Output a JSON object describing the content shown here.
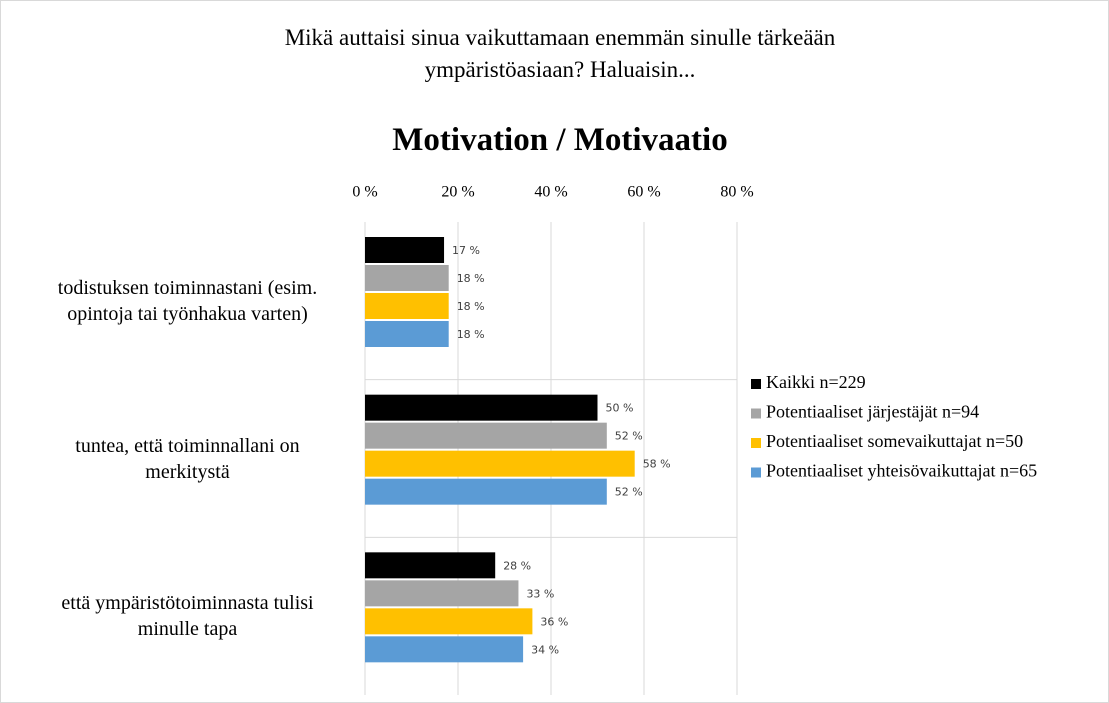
{
  "chart_data": {
    "type": "barh",
    "title": "Mikä auttaisi sinua vaikuttamaan enemmän sinulle tärkeään\nympäristöasiaan? Haluaisin...",
    "subtitle": "Motivation / Motivaatio",
    "categories": [
      "todistuksen toiminnastani (esim.\nopintoja tai työnhakua varten)",
      "tuntea, että toiminnallani on\nmerkitystä",
      "että ympäristötoiminnasta tulisi\nminulle tapa"
    ],
    "series": [
      {
        "name": "Kaikki n=229",
        "color": "#000000",
        "values": [
          17,
          50,
          28
        ],
        "value_labels": [
          "17 %",
          "50 %",
          "28 %"
        ]
      },
      {
        "name": "Potentiaaliset järjestäjät n=94",
        "color": "#a5a5a5",
        "values": [
          18,
          52,
          33
        ],
        "value_labels": [
          "18 %",
          "52 %",
          "33 %"
        ]
      },
      {
        "name": "Potentiaaliset somevaikuttajat n=50",
        "color": "#ffc000",
        "values": [
          18,
          58,
          36
        ],
        "value_labels": [
          "18 %",
          "58 %",
          "36 %"
        ]
      },
      {
        "name": "Potentiaaliset yhteisövaikuttajat n=65",
        "color": "#5b9bd5",
        "values": [
          18,
          52,
          34
        ],
        "value_labels": [
          "18 %",
          "52 %",
          "34 %"
        ]
      }
    ],
    "xlim": [
      0,
      80
    ],
    "xticks": [
      {
        "value": 0,
        "label": "0 %"
      },
      {
        "value": 20,
        "label": "20 %"
      },
      {
        "value": 40,
        "label": "40 %"
      },
      {
        "value": 60,
        "label": "60 %"
      },
      {
        "value": 80,
        "label": "80 %"
      }
    ],
    "grid": true,
    "legend": "right"
  }
}
